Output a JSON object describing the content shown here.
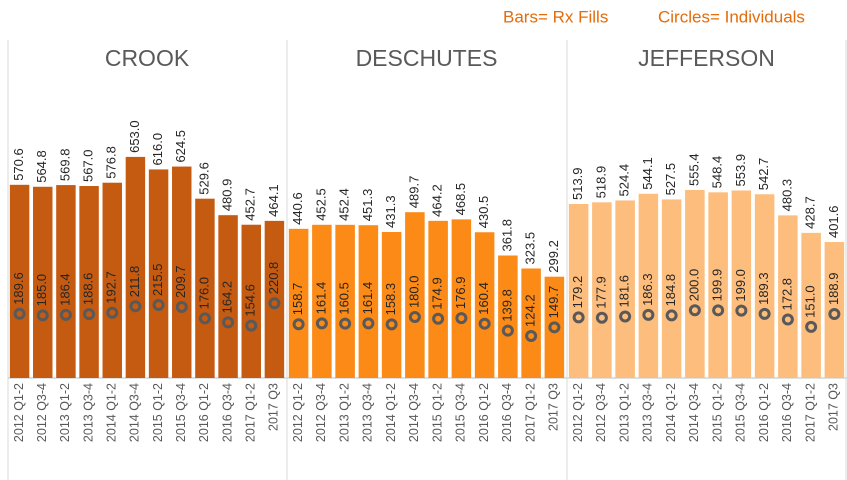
{
  "legend": {
    "bars": "Bars= Rx Fills",
    "circles": "Circles= Individuals"
  },
  "chart_data": [
    {
      "type": "bar",
      "title": "CROOK",
      "categories": [
        "2012 Q1-2",
        "2012 Q3-4",
        "2013 Q1-2",
        "2013 Q3-4",
        "2014 Q1-2",
        "2014 Q3-4",
        "2015 Q1-2",
        "2015 Q3-4",
        "2016 Q1-2",
        "2016 Q3-4",
        "2017 Q1-2",
        "2017 Q3"
      ],
      "ylim": [
        0,
        700
      ],
      "series": [
        {
          "color": "#c55a11",
          "values": [
            570.6,
            564.8,
            569.8,
            567.0,
            576.8,
            653.0,
            616.0,
            624.5,
            529.6,
            480.9,
            452.7,
            464.1
          ],
          "value_labels": [
            "570.6",
            "564.8",
            "569.8",
            "567.0",
            "576.8",
            "653.0",
            "616.0",
            "624.5",
            "529.6",
            "480.9",
            "452.7",
            "464.1"
          ]
        },
        {
          "color": "#595959",
          "values": [
            189.6,
            185.0,
            186.4,
            188.6,
            192.7,
            211.8,
            215.5,
            209.7,
            176.0,
            164.2,
            154.6,
            220.8
          ],
          "value_labels": [
            "189.6",
            "185.0",
            "186.4",
            "188.6",
            "192.7",
            "211.8",
            "215.5",
            "209.7",
            "176.0",
            "164.2",
            "154.6",
            "220.8"
          ]
        }
      ]
    },
    {
      "type": "bar",
      "title": "DESCHUTES",
      "categories": [
        "2012 Q1-2",
        "2012 Q3-4",
        "2013 Q1-2",
        "2013 Q3-4",
        "2014 Q1-2",
        "2014 Q3-4",
        "2015 Q1-2",
        "2015 Q3-4",
        "2016 Q1-2",
        "2016 Q3-4",
        "2017 Q1-2",
        "2017 Q3"
      ],
      "ylim": [
        0,
        700
      ],
      "series": [
        {
          "color": "#fb8a17",
          "values": [
            440.6,
            452.5,
            452.4,
            451.3,
            431.3,
            489.7,
            464.2,
            468.5,
            430.5,
            361.8,
            323.5,
            299.2
          ],
          "value_labels": [
            "440.6",
            "452.5",
            "452.4",
            "451.3",
            "431.3",
            "489.7",
            "464.2",
            "468.5",
            "430.5",
            "361.8",
            "323.5",
            "299.2"
          ]
        },
        {
          "color": "#595959",
          "values": [
            158.7,
            161.4,
            160.5,
            161.4,
            158.3,
            180.0,
            174.9,
            176.9,
            160.4,
            139.8,
            124.2,
            149.7
          ],
          "value_labels": [
            "158.7",
            "161.4",
            "160.5",
            "161.4",
            "158.3",
            "180.0",
            "174.9",
            "176.9",
            "160.4",
            "139.8",
            "124.2",
            "149.7"
          ]
        }
      ]
    },
    {
      "type": "bar",
      "title": "JEFFERSON",
      "categories": [
        "2012 Q1-2",
        "2012 Q3-4",
        "2013 Q1-2",
        "2013 Q3-4",
        "2014 Q1-2",
        "2014 Q3-4",
        "2015 Q1-2",
        "2015 Q3-4",
        "2016 Q1-2",
        "2016 Q3-4",
        "2017 Q1-2",
        "2017 Q3"
      ],
      "ylim": [
        0,
        700
      ],
      "series": [
        {
          "color": "#fdbd7c",
          "values": [
            513.9,
            518.9,
            524.4,
            544.1,
            527.5,
            555.4,
            548.4,
            553.9,
            542.7,
            480.3,
            428.7,
            401.6
          ],
          "value_labels": [
            "513.9",
            "518.9",
            "524.4",
            "544.1",
            "527.5",
            "555.4",
            "548.4",
            "553.9",
            "542.7",
            "480.3",
            "428.7",
            "401.6"
          ]
        },
        {
          "color": "#595959",
          "values": [
            179.2,
            177.9,
            181.6,
            186.3,
            184.8,
            200.0,
            199.9,
            199.0,
            189.3,
            172.8,
            151.0,
            188.9
          ],
          "value_labels": [
            "179.2",
            "177.9",
            "181.6",
            "186.3",
            "184.8",
            "200.0",
            "199.9",
            "199.0",
            "189.3",
            "172.8",
            "151.0",
            "188.9"
          ]
        }
      ]
    }
  ]
}
